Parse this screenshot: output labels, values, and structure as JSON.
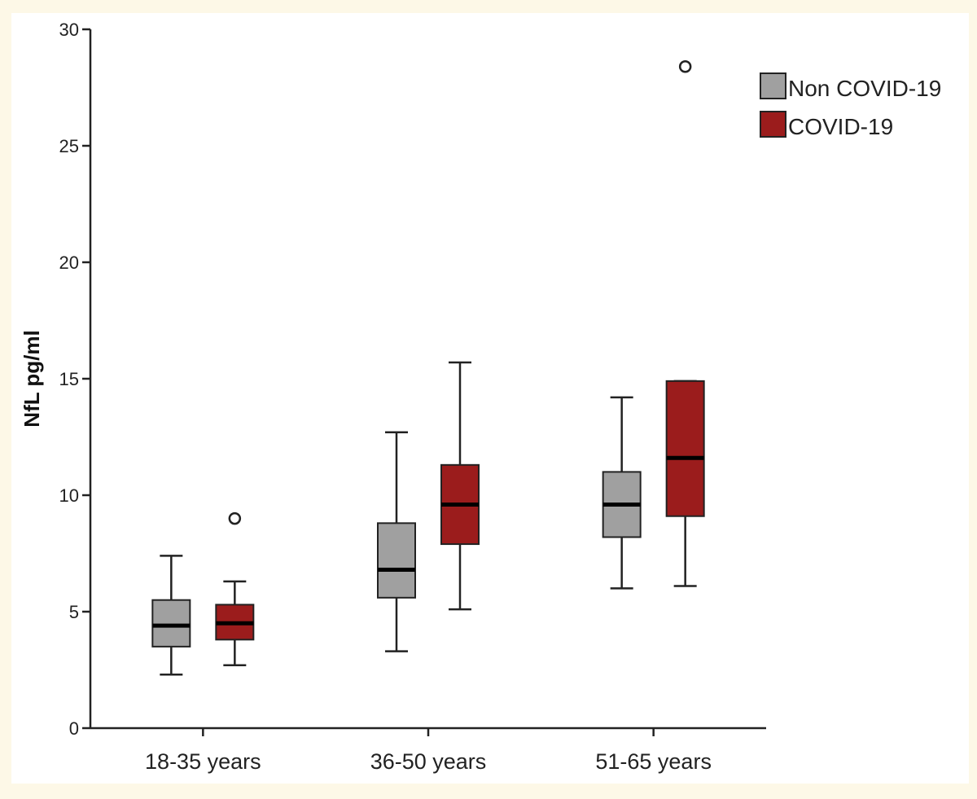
{
  "chart_data": {
    "type": "boxplot",
    "title": "",
    "xlabel": "",
    "ylabel": "NfL pg/ml",
    "ylim": [
      0,
      30
    ],
    "yticks": [
      0,
      5,
      10,
      15,
      20,
      25,
      30
    ],
    "categories": [
      "18-35 years",
      "36-50 years",
      "51-65 years"
    ],
    "legend_position": "top-right",
    "series": [
      {
        "name": "Non COVID-19",
        "color": "#a0a0a0",
        "boxes": [
          {
            "whisker_low": 2.3,
            "q1": 3.5,
            "median": 4.4,
            "q3": 5.5,
            "whisker_high": 7.4,
            "outliers": []
          },
          {
            "whisker_low": 3.3,
            "q1": 5.6,
            "median": 6.8,
            "q3": 8.8,
            "whisker_high": 12.7,
            "outliers": []
          },
          {
            "whisker_low": 6.0,
            "q1": 8.2,
            "median": 9.6,
            "q3": 11.0,
            "whisker_high": 14.2,
            "outliers": []
          }
        ]
      },
      {
        "name": "COVID-19",
        "color": "#9b1c1c",
        "boxes": [
          {
            "whisker_low": 2.7,
            "q1": 3.8,
            "median": 4.5,
            "q3": 5.3,
            "whisker_high": 6.3,
            "outliers": [
              9.0
            ]
          },
          {
            "whisker_low": 5.1,
            "q1": 7.9,
            "median": 9.6,
            "q3": 11.3,
            "whisker_high": 15.7,
            "outliers": []
          },
          {
            "whisker_low": 6.1,
            "q1": 9.1,
            "median": 11.6,
            "q3": 14.9,
            "whisker_high": 14.9,
            "outliers": [
              28.4
            ]
          }
        ]
      }
    ]
  }
}
